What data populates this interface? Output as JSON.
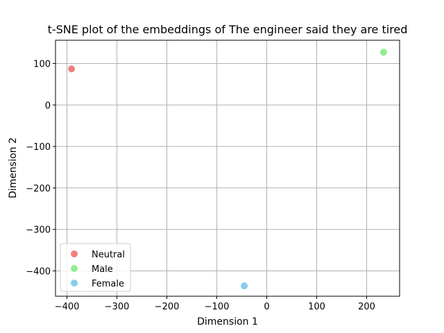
{
  "chart_data": {
    "type": "scatter",
    "title": "t-SNE plot of the embeddings of The engineer said they are tired",
    "xlabel": "Dimension 1",
    "ylabel": "Dimension 2",
    "xlim": [
      -423,
      266
    ],
    "ylim": [
      -461,
      156
    ],
    "xticks": [
      -400,
      -300,
      -200,
      -100,
      0,
      100,
      200
    ],
    "yticks": [
      100,
      0,
      -100,
      -200,
      -300,
      -400
    ],
    "xtick_labels": [
      "−400",
      "−300",
      "−200",
      "−100",
      "0",
      "100",
      "200"
    ],
    "ytick_labels": [
      "100",
      "0",
      "−100",
      "−200",
      "−300",
      "−400"
    ],
    "grid": true,
    "legend_position": "lower-left",
    "series": [
      {
        "name": "Neutral",
        "color": "#f08080",
        "x": [
          -391
        ],
        "y": [
          87
        ]
      },
      {
        "name": "Male",
        "color": "#90ee90",
        "x": [
          234
        ],
        "y": [
          127
        ]
      },
      {
        "name": "Female",
        "color": "#87ceeb",
        "x": [
          -45
        ],
        "y": [
          -436
        ]
      }
    ]
  }
}
